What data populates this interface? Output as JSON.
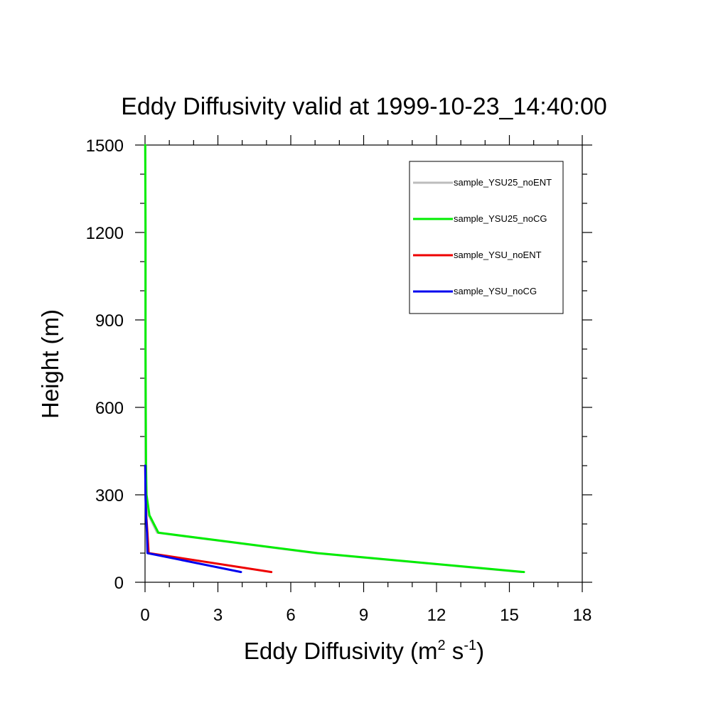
{
  "chart_data": {
    "type": "line",
    "title": "Eddy Diffusivity valid at 1999-10-23_14:40:00",
    "xlabel": {
      "text": "Eddy Diffusivity (m",
      "sup1": "2",
      "mid": " s",
      "sup2": "-1",
      "end": ")"
    },
    "ylabel": "Height (m)",
    "xlim": [
      0,
      18
    ],
    "ylim": [
      0,
      1500
    ],
    "x_ticks": [
      0,
      3,
      6,
      9,
      12,
      15,
      18
    ],
    "y_ticks": [
      0,
      300,
      600,
      900,
      1200,
      1500
    ],
    "x_tick_labels": [
      "0",
      "3",
      "6",
      "9",
      "12",
      "15",
      "18"
    ],
    "y_tick_labels": [
      "0",
      "300",
      "600",
      "900",
      "1200",
      "1500"
    ],
    "legend_position": "top-right",
    "series": [
      {
        "name": "sample_YSU25_noENT",
        "color": "#bdbdbd",
        "x": [
          15.5,
          7.0,
          0.5,
          0.15,
          0.05,
          0.03,
          0.02,
          0.02,
          0.02,
          0.02,
          0.01
        ],
        "y": [
          35,
          100,
          170,
          230,
          300,
          400,
          600,
          800,
          1000,
          1200,
          1500
        ]
      },
      {
        "name": "sample_YSU25_noCG",
        "color": "#00ee00",
        "x": [
          15.6,
          7.1,
          0.55,
          0.18,
          0.06,
          0.04,
          0.03,
          0.02,
          0.02,
          0.02,
          0.01
        ],
        "y": [
          35,
          100,
          170,
          230,
          300,
          400,
          600,
          800,
          1000,
          1200,
          1500
        ]
      },
      {
        "name": "sample_YSU_noENT",
        "color": "#ee0000",
        "x": [
          5.2,
          0.15,
          0.1,
          0.05,
          0.02,
          0.01
        ],
        "y": [
          35,
          100,
          170,
          230,
          300,
          400
        ]
      },
      {
        "name": "sample_YSU_noCG",
        "color": "#0000ee",
        "x": [
          3.95,
          0.1,
          0.08,
          0.04,
          0.02,
          0.01
        ],
        "y": [
          35,
          100,
          170,
          230,
          300,
          400
        ]
      }
    ]
  }
}
